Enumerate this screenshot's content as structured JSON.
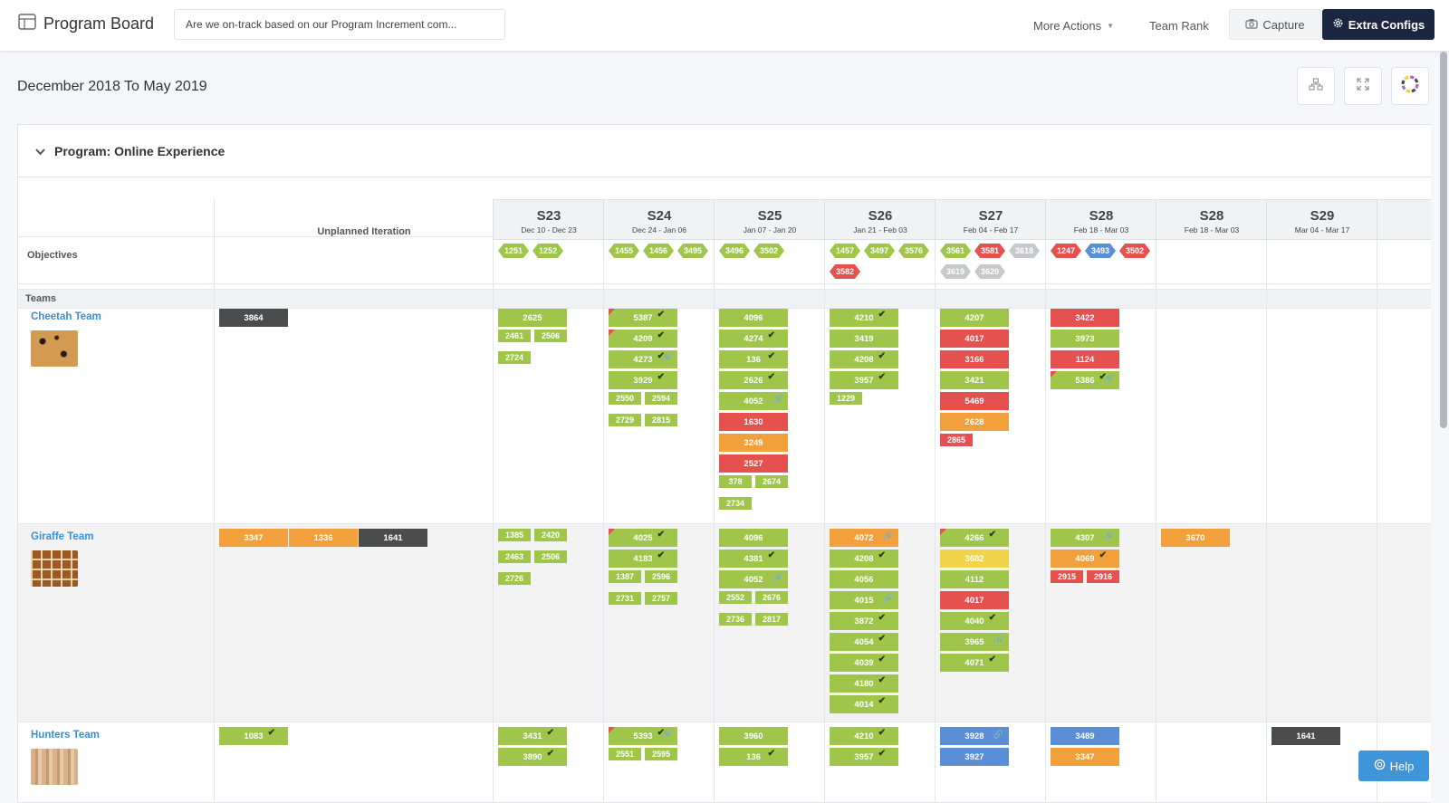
{
  "header": {
    "app_title": "Program Board",
    "search_value": "Are we on-track based on our Program Increment com...",
    "more_actions": "More Actions",
    "team_rank": "Team Rank",
    "capture": "Capture",
    "extra_configs": "Extra Configs"
  },
  "range_title": "December 2018 To May 2019",
  "program": {
    "title": "Program: Online Experience"
  },
  "labels": {
    "unplanned": "Unplanned Iteration",
    "objectives": "Objectives",
    "teams": "Teams"
  },
  "iterations": [
    {
      "name": "S23",
      "dates": "Dec 10 - Dec 23"
    },
    {
      "name": "S24",
      "dates": "Dec 24 - Jan 06"
    },
    {
      "name": "S25",
      "dates": "Jan 07 - Jan 20"
    },
    {
      "name": "S26",
      "dates": "Jan 21 - Feb 03"
    },
    {
      "name": "S27",
      "dates": "Feb 04 - Feb 17"
    },
    {
      "name": "S28",
      "dates": "Feb 18 - Mar 03"
    },
    {
      "name": "S28",
      "dates": "Feb 18 - Mar 03"
    },
    {
      "name": "S29",
      "dates": "Mar 04 - Mar 17"
    }
  ],
  "objectives": [
    [
      {
        "id": "1251",
        "color": "green"
      },
      {
        "id": "1252",
        "color": "green"
      }
    ],
    [
      {
        "id": "1455",
        "color": "green"
      },
      {
        "id": "1456",
        "color": "green"
      },
      {
        "id": "3495",
        "color": "green"
      }
    ],
    [
      {
        "id": "3496",
        "color": "green"
      },
      {
        "id": "3502",
        "color": "green"
      }
    ],
    [
      {
        "id": "1457",
        "color": "green"
      },
      {
        "id": "3497",
        "color": "green"
      },
      {
        "id": "3576",
        "color": "green"
      },
      {
        "id": "3582",
        "color": "red"
      }
    ],
    [
      {
        "id": "3561",
        "color": "green"
      },
      {
        "id": "3581",
        "color": "red"
      },
      {
        "id": "3618",
        "color": "grey"
      },
      {
        "id": "3619",
        "color": "grey"
      },
      {
        "id": "3620",
        "color": "grey"
      }
    ],
    [
      {
        "id": "1247",
        "color": "red"
      },
      {
        "id": "3493",
        "color": "blue"
      },
      {
        "id": "3502",
        "color": "red"
      }
    ],
    [],
    []
  ],
  "teams": [
    {
      "name": "Cheetah Team",
      "image": "cheetah-fur",
      "unplanned": [
        {
          "id": "3864",
          "color": "dark"
        }
      ],
      "columns": [
        [
          {
            "id": "2625",
            "color": "green"
          },
          {
            "id": "2461",
            "color": "green",
            "half": true
          },
          {
            "id": "2506",
            "color": "green",
            "half": true
          },
          {
            "id": "2724",
            "color": "green",
            "half": true
          }
        ],
        [
          {
            "id": "5387",
            "color": "green",
            "check": true,
            "flag": true
          },
          {
            "id": "4209",
            "color": "green",
            "check": true,
            "flag": true
          },
          {
            "id": "4273",
            "color": "green",
            "check": true,
            "link": true
          },
          {
            "id": "3929",
            "color": "green",
            "check": true
          },
          {
            "id": "2550",
            "color": "green",
            "half": true
          },
          {
            "id": "2594",
            "color": "green",
            "half": true
          },
          {
            "id": "2729",
            "color": "green",
            "half": true
          },
          {
            "id": "2815",
            "color": "green",
            "half": true
          }
        ],
        [
          {
            "id": "4096",
            "color": "green"
          },
          {
            "id": "4274",
            "color": "green",
            "check": true
          },
          {
            "id": "136",
            "color": "green",
            "check": true
          },
          {
            "id": "2626",
            "color": "green",
            "check": true
          },
          {
            "id": "4052",
            "color": "green",
            "link": true
          },
          {
            "id": "1630",
            "color": "red"
          },
          {
            "id": "3249",
            "color": "orange"
          },
          {
            "id": "2527",
            "color": "red"
          },
          {
            "id": "378",
            "color": "green",
            "half": true
          },
          {
            "id": "2674",
            "color": "green",
            "half": true
          },
          {
            "id": "2734",
            "color": "green",
            "half": true
          }
        ],
        [
          {
            "id": "4210",
            "color": "green",
            "check": true
          },
          {
            "id": "3419",
            "color": "green"
          },
          {
            "id": "4208",
            "color": "green",
            "check": true
          },
          {
            "id": "3957",
            "color": "green",
            "check": true
          },
          {
            "id": "1229",
            "color": "green",
            "half": true
          }
        ],
        [
          {
            "id": "4207",
            "color": "green"
          },
          {
            "id": "4017",
            "color": "red"
          },
          {
            "id": "3166",
            "color": "red"
          },
          {
            "id": "3421",
            "color": "green"
          },
          {
            "id": "5469",
            "color": "red"
          },
          {
            "id": "2628",
            "color": "orange"
          },
          {
            "id": "2865",
            "color": "red",
            "half": true
          }
        ],
        [
          {
            "id": "3422",
            "color": "red"
          },
          {
            "id": "3973",
            "color": "green"
          },
          {
            "id": "1124",
            "color": "red"
          },
          {
            "id": "5386",
            "color": "green",
            "check": true,
            "link": true,
            "flag": true
          }
        ],
        [],
        []
      ]
    },
    {
      "name": "Giraffe Team",
      "image": "giraffe-pattern",
      "unplanned": [
        {
          "id": "3347",
          "color": "orange"
        },
        {
          "id": "1336",
          "color": "orange"
        },
        {
          "id": "1641",
          "color": "dark"
        }
      ],
      "columns": [
        [
          {
            "id": "1385",
            "color": "green",
            "half": true
          },
          {
            "id": "2420",
            "color": "green",
            "half": true
          },
          {
            "id": "2463",
            "color": "green",
            "half": true
          },
          {
            "id": "2506",
            "color": "green",
            "half": true
          },
          {
            "id": "2726",
            "color": "green",
            "half": true
          }
        ],
        [
          {
            "id": "4025",
            "color": "green",
            "check": true,
            "flag": true
          },
          {
            "id": "4183",
            "color": "green",
            "check": true
          },
          {
            "id": "1387",
            "color": "green",
            "half": true
          },
          {
            "id": "2596",
            "color": "green",
            "half": true
          },
          {
            "id": "2731",
            "color": "green",
            "half": true
          },
          {
            "id": "2757",
            "color": "green",
            "half": true
          }
        ],
        [
          {
            "id": "4096",
            "color": "green"
          },
          {
            "id": "4381",
            "color": "green",
            "check": true
          },
          {
            "id": "4052",
            "color": "green",
            "link": true
          },
          {
            "id": "2552",
            "color": "green",
            "half": true
          },
          {
            "id": "2676",
            "color": "green",
            "half": true
          },
          {
            "id": "2736",
            "color": "green",
            "half": true
          },
          {
            "id": "2817",
            "color": "green",
            "half": true
          }
        ],
        [
          {
            "id": "4072",
            "color": "orange",
            "link": true
          },
          {
            "id": "4208",
            "color": "green",
            "check": true
          },
          {
            "id": "4056",
            "color": "green"
          },
          {
            "id": "4015",
            "color": "green",
            "link": true
          },
          {
            "id": "3872",
            "color": "green",
            "check": true
          },
          {
            "id": "4054",
            "color": "green",
            "check": true
          },
          {
            "id": "4039",
            "color": "green",
            "check": true
          },
          {
            "id": "4180",
            "color": "green",
            "check": true
          },
          {
            "id": "4014",
            "color": "green",
            "check": true
          }
        ],
        [
          {
            "id": "4266",
            "color": "green",
            "check": true,
            "flag": true
          },
          {
            "id": "3682",
            "color": "yellow"
          },
          {
            "id": "4112",
            "color": "green"
          },
          {
            "id": "4017",
            "color": "red"
          },
          {
            "id": "4040",
            "color": "green",
            "check": true
          },
          {
            "id": "3965",
            "color": "green",
            "link": true
          },
          {
            "id": "4071",
            "color": "green",
            "check": true
          }
        ],
        [
          {
            "id": "4307",
            "color": "green",
            "link": true
          },
          {
            "id": "4069",
            "color": "orange",
            "check": true
          },
          {
            "id": "2915",
            "color": "red",
            "half": true
          },
          {
            "id": "2916",
            "color": "red",
            "half": true
          }
        ],
        [
          {
            "id": "3670",
            "color": "orange"
          }
        ],
        []
      ]
    },
    {
      "name": "Hunters Team",
      "image": "hunters-texture",
      "unplanned": [
        {
          "id": "1083",
          "color": "green",
          "check": true
        }
      ],
      "columns": [
        [
          {
            "id": "3431",
            "color": "green",
            "check": true
          },
          {
            "id": "3890",
            "color": "green",
            "check": true
          }
        ],
        [
          {
            "id": "5393",
            "color": "green",
            "check": true,
            "link": true,
            "flag": true
          },
          {
            "id": "2551",
            "color": "green",
            "half": true
          },
          {
            "id": "2595",
            "color": "green",
            "half": true
          }
        ],
        [
          {
            "id": "3960",
            "color": "green"
          },
          {
            "id": "136",
            "color": "green",
            "check": true
          }
        ],
        [
          {
            "id": "4210",
            "color": "green",
            "check": true
          },
          {
            "id": "3957",
            "color": "green",
            "check": true
          }
        ],
        [
          {
            "id": "3928",
            "color": "blue",
            "link": true
          },
          {
            "id": "3927",
            "color": "blue"
          }
        ],
        [
          {
            "id": "3489",
            "color": "blue"
          },
          {
            "id": "3347",
            "color": "orange"
          }
        ],
        [],
        [
          {
            "id": "1641",
            "color": "dark"
          }
        ]
      ]
    }
  ],
  "help_label": "Help",
  "colors": {
    "green": "#9fc54a",
    "red": "#e4514f",
    "orange": "#f1a03c",
    "yellow": "#f3d34a",
    "blue": "#5a8fd8",
    "dark": "#4b4c4e",
    "grey": "#c6c8cb",
    "accent": "#1b2640",
    "link": "#3a8fd3"
  }
}
